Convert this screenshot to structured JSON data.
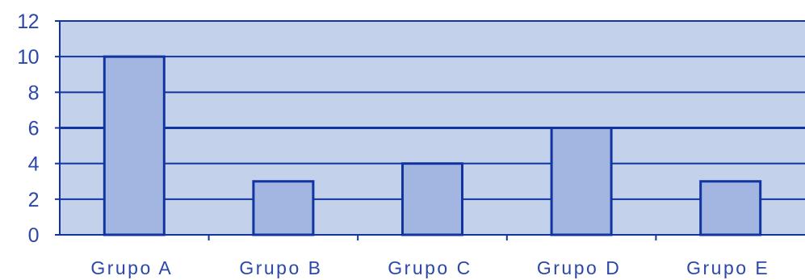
{
  "chart_data": {
    "type": "bar",
    "title": "",
    "xlabel": "",
    "ylabel": "",
    "categories": [
      "Grupo A",
      "Grupo B",
      "Grupo C",
      "Grupo D",
      "Grupo E"
    ],
    "values": [
      10,
      3,
      4,
      6,
      3
    ],
    "ylim": [
      0,
      12
    ],
    "yticks": [
      "0",
      "2",
      "4",
      "6",
      "8",
      "10",
      "12"
    ],
    "grid": true,
    "legend": "none"
  },
  "colors": {
    "plot_background": "#c3d1eb",
    "bar_fill": "#a3b6e1",
    "bar_stroke": "#1234a0",
    "gridline": "#1234a0",
    "axis": "#1234a0",
    "text": "#2b48a8"
  }
}
